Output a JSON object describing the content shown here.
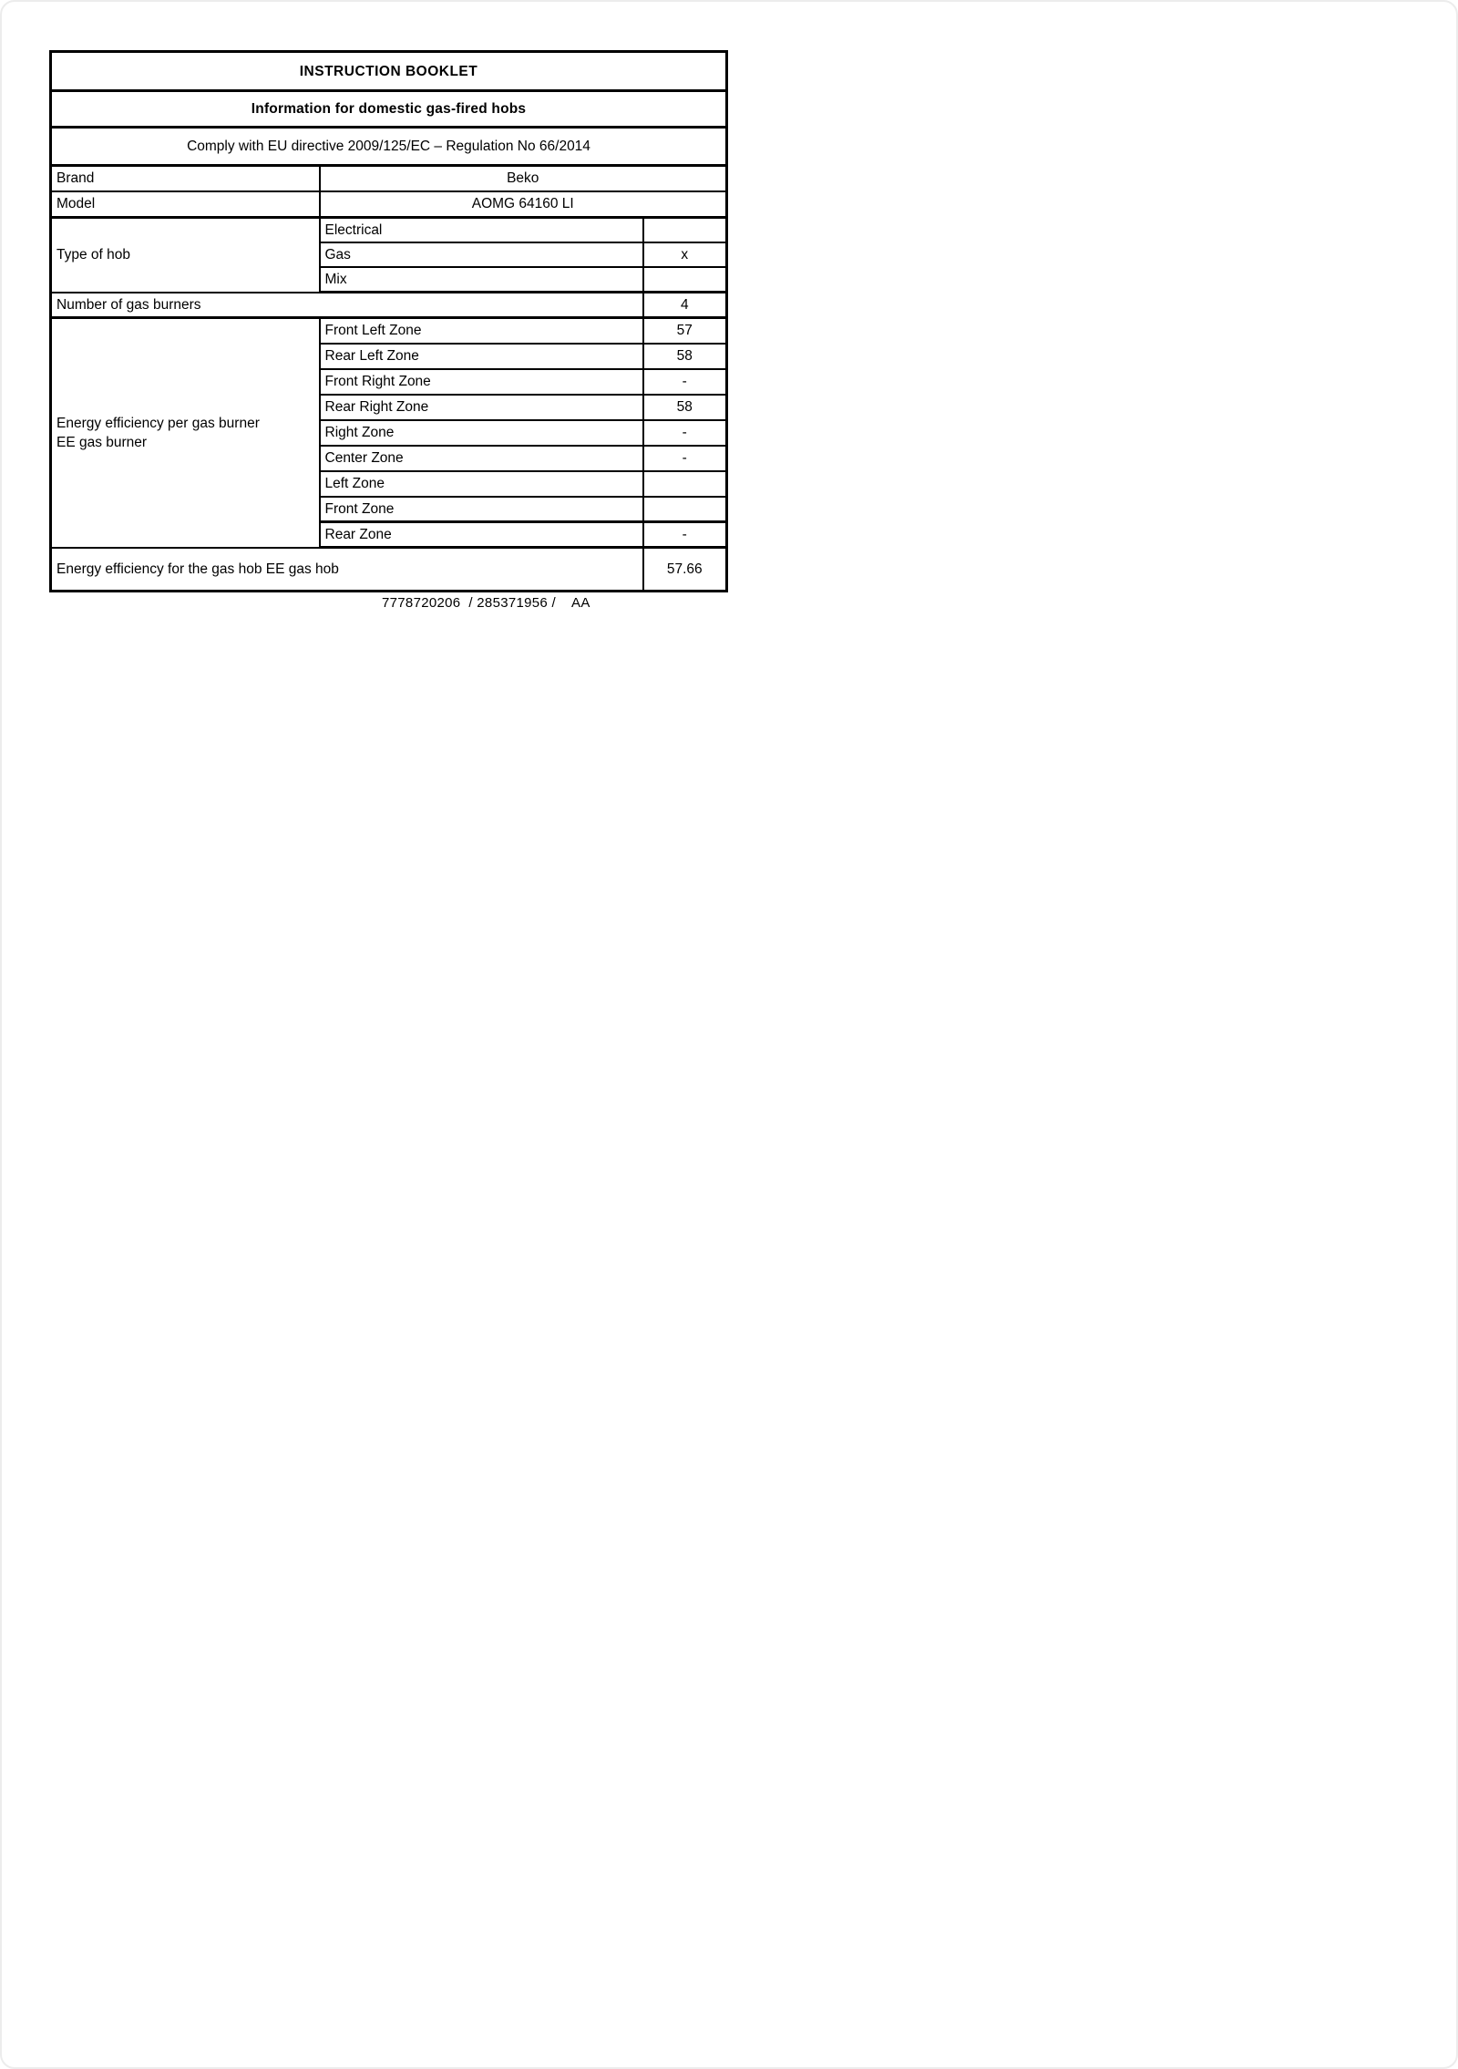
{
  "table": {
    "title": "INSTRUCTION BOOKLET",
    "subtitle": "Information for domestic gas-fired hobs",
    "compliance": "Comply with EU directive 2009/125/EC – Regulation No 66/2014",
    "brand": {
      "label": "Brand",
      "value": "Beko"
    },
    "model": {
      "label": "Model",
      "value": "AOMG 64160 LI"
    },
    "type_of_hob": {
      "label": "Type of hob",
      "rows": [
        {
          "label": "Electrical",
          "value": ""
        },
        {
          "label": "Gas",
          "value": "x"
        },
        {
          "label": "Mix",
          "value": ""
        }
      ]
    },
    "burners": {
      "label": "Number of gas burners",
      "value": "4"
    },
    "efficiency": {
      "label_line1": "Energy efficiency per gas burner",
      "label_line2": "EE gas burner",
      "zones": [
        {
          "label": "Front Left Zone",
          "value": "57"
        },
        {
          "label": "Rear Left Zone",
          "value": "58"
        },
        {
          "label": "Front Right Zone",
          "value": "-"
        },
        {
          "label": "Rear Right Zone",
          "value": "58"
        },
        {
          "label": "Right Zone",
          "value": "-"
        },
        {
          "label": "Center Zone",
          "value": "-"
        },
        {
          "label": "Left Zone",
          "value": ""
        },
        {
          "label": "Front Zone",
          "value": ""
        },
        {
          "label": "Rear Zone",
          "value": "-"
        }
      ]
    },
    "total": {
      "label": "Energy efficiency for the gas hob EE gas hob",
      "value": "57.66"
    }
  },
  "footer": {
    "code": "7778720206  / 285371956 /    AA"
  }
}
